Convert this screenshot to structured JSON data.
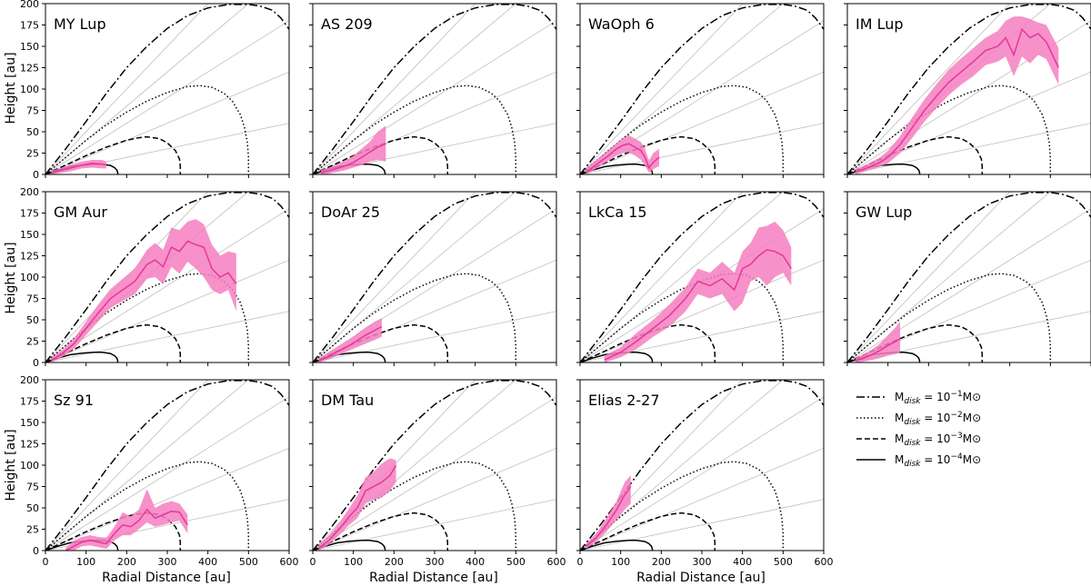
{
  "chart_data": {
    "type": "line",
    "xlabel": "Radial Distance [au]",
    "ylabel": "Height [au]",
    "xlim": [
      0,
      600
    ],
    "ylim": [
      0,
      200
    ],
    "xticks": [
      0,
      100,
      200,
      300,
      400,
      500,
      600
    ],
    "yticks": [
      0,
      25,
      50,
      75,
      100,
      125,
      150,
      175,
      200
    ],
    "grey_ratio_lines": [
      0.1,
      0.2,
      0.3,
      0.4,
      0.5
    ],
    "colors": {
      "data": "#e8359b",
      "band": "#f47fc0",
      "model": "#000000",
      "grid": "#bfbfbf"
    },
    "legend": [
      {
        "label_prefix": "M",
        "label_sub": "disk",
        "label_mid": " = 10",
        "label_sup": "−1",
        "label_suffix": "M⊙",
        "dash": "dashdot"
      },
      {
        "label_prefix": "M",
        "label_sub": "disk",
        "label_mid": " = 10",
        "label_sup": "−2",
        "label_suffix": "M⊙",
        "dash": "dotted"
      },
      {
        "label_prefix": "M",
        "label_sub": "disk",
        "label_mid": " = 10",
        "label_sup": "−3",
        "label_suffix": "M⊙",
        "dash": "dashed"
      },
      {
        "label_prefix": "M",
        "label_sub": "disk",
        "label_mid": " = 10",
        "label_sup": "−4",
        "label_suffix": "M⊙",
        "dash": "solid"
      }
    ],
    "models": [
      {
        "name": "1e-1",
        "dash": "dashdot",
        "x": [
          0,
          50,
          100,
          150,
          200,
          250,
          300,
          350,
          400,
          450,
          500,
          530,
          560,
          580,
          600
        ],
        "y": [
          0,
          30,
          62,
          95,
          125,
          150,
          171,
          186,
          195,
          199,
          199,
          197,
          192,
          183,
          170
        ]
      },
      {
        "name": "1e-2",
        "dash": "dotted",
        "x": [
          0,
          50,
          100,
          150,
          200,
          250,
          300,
          350,
          380,
          410,
          440,
          460,
          480,
          490,
          497,
          500,
          500
        ],
        "y": [
          0,
          20,
          40,
          58,
          73,
          86,
          96,
          103,
          104,
          102,
          95,
          86,
          70,
          55,
          38,
          20,
          0
        ]
      },
      {
        "name": "1e-3",
        "dash": "dashed",
        "x": [
          0,
          50,
          100,
          150,
          200,
          230,
          250,
          280,
          300,
          320,
          330,
          332,
          332
        ],
        "y": [
          0,
          11,
          22,
          32,
          40,
          43,
          44,
          42,
          37,
          28,
          18,
          10,
          0
        ]
      },
      {
        "name": "1e-4",
        "dash": "solid",
        "x": [
          0,
          30,
          60,
          90,
          120,
          140,
          160,
          170,
          176,
          178,
          178
        ],
        "y": [
          0,
          5,
          9,
          11,
          12,
          12,
          10.5,
          8,
          5,
          2,
          0
        ]
      }
    ],
    "panels": [
      {
        "title": "MY Lup",
        "x": [
          15,
          40,
          65,
          90,
          115,
          140,
          150
        ],
        "y": [
          2,
          5,
          8,
          11,
          13,
          12,
          11
        ],
        "lo": [
          0,
          2,
          4,
          7,
          8,
          7,
          7
        ],
        "hi": [
          4,
          8,
          12,
          15,
          17,
          17,
          15
        ]
      },
      {
        "title": "AS 209",
        "x": [
          20,
          40,
          60,
          80,
          100,
          120,
          140,
          160,
          180
        ],
        "y": [
          2,
          4,
          7,
          10,
          14,
          20,
          26,
          32,
          36
        ],
        "lo": [
          0,
          1,
          3,
          5,
          8,
          11,
          15,
          17,
          15
        ],
        "hi": [
          5,
          8,
          12,
          16,
          22,
          30,
          38,
          50,
          57
        ]
      },
      {
        "title": "WaOph 6",
        "x": [
          15,
          30,
          50,
          70,
          90,
          105,
          120,
          135,
          150,
          160,
          170,
          180,
          195
        ],
        "y": [
          3,
          8,
          15,
          22,
          30,
          34,
          36,
          32,
          28,
          20,
          8,
          14,
          20
        ],
        "lo": [
          0,
          4,
          10,
          16,
          22,
          25,
          26,
          22,
          17,
          10,
          2,
          6,
          10
        ],
        "hi": [
          7,
          13,
          21,
          28,
          37,
          42,
          46,
          42,
          38,
          30,
          16,
          25,
          30
        ]
      },
      {
        "title": "IM Lup",
        "x": [
          20,
          40,
          60,
          80,
          100,
          130,
          160,
          190,
          220,
          250,
          280,
          310,
          340,
          370,
          390,
          410,
          430,
          450,
          470,
          490,
          520
        ],
        "y": [
          3,
          6,
          10,
          14,
          20,
          35,
          55,
          75,
          92,
          108,
          120,
          132,
          145,
          150,
          160,
          140,
          170,
          160,
          165,
          155,
          125
        ],
        "lo": [
          0,
          3,
          6,
          9,
          13,
          25,
          43,
          62,
          78,
          93,
          105,
          115,
          128,
          132,
          138,
          115,
          138,
          130,
          140,
          135,
          105
        ],
        "hi": [
          6,
          10,
          15,
          20,
          28,
          45,
          67,
          88,
          106,
          123,
          136,
          148,
          160,
          168,
          180,
          185,
          185,
          182,
          178,
          175,
          148
        ]
      },
      {
        "title": "GM Aur",
        "x": [
          15,
          40,
          70,
          100,
          130,
          160,
          190,
          220,
          250,
          270,
          290,
          310,
          330,
          350,
          370,
          390,
          410,
          430,
          450,
          470
        ],
        "y": [
          3,
          10,
          22,
          40,
          58,
          75,
          85,
          95,
          115,
          120,
          112,
          135,
          130,
          142,
          138,
          135,
          110,
          100,
          105,
          92
        ],
        "lo": [
          0,
          6,
          16,
          32,
          48,
          64,
          72,
          80,
          98,
          100,
          92,
          112,
          104,
          118,
          110,
          100,
          85,
          80,
          85,
          60
        ],
        "hi": [
          6,
          14,
          28,
          48,
          68,
          86,
          98,
          110,
          132,
          140,
          132,
          158,
          155,
          165,
          168,
          162,
          138,
          125,
          130,
          128
        ]
      },
      {
        "title": "DoAr 25",
        "x": [
          15,
          30,
          50,
          70,
          90,
          110,
          130,
          150,
          170
        ],
        "y": [
          2,
          5,
          10,
          15,
          20,
          26,
          32,
          37,
          42
        ],
        "lo": [
          0,
          2,
          6,
          10,
          14,
          18,
          22,
          26,
          30
        ],
        "hi": [
          5,
          9,
          15,
          21,
          27,
          34,
          41,
          47,
          52
        ]
      },
      {
        "title": "LkCa 15",
        "x": [
          60,
          100,
          140,
          180,
          220,
          260,
          290,
          320,
          350,
          380,
          400,
          420,
          440,
          460,
          480,
          500,
          520
        ],
        "y": [
          3,
          12,
          25,
          40,
          55,
          75,
          95,
          90,
          98,
          85,
          110,
          115,
          125,
          132,
          130,
          125,
          110
        ],
        "lo": [
          0,
          6,
          16,
          30,
          42,
          60,
          80,
          75,
          80,
          60,
          70,
          95,
          100,
          90,
          100,
          105,
          90
        ],
        "hi": [
          8,
          18,
          35,
          50,
          68,
          88,
          110,
          105,
          118,
          105,
          130,
          140,
          158,
          160,
          165,
          155,
          135
        ]
      },
      {
        "title": "GW Lup",
        "x": [
          20,
          40,
          60,
          80,
          100,
          120,
          130
        ],
        "y": [
          2,
          5,
          9,
          14,
          20,
          25,
          28
        ],
        "lo": [
          0,
          1,
          3,
          5,
          8,
          10,
          12
        ],
        "hi": [
          5,
          10,
          15,
          22,
          32,
          42,
          48
        ]
      },
      {
        "title": "Sz 91",
        "x": [
          50,
          70,
          90,
          110,
          130,
          150,
          170,
          190,
          210,
          230,
          250,
          270,
          290,
          310,
          330,
          350
        ],
        "y": [
          0,
          5,
          10,
          12,
          10,
          8,
          20,
          30,
          28,
          35,
          48,
          38,
          42,
          46,
          45,
          30
        ],
        "lo": [
          0,
          0,
          5,
          6,
          4,
          2,
          12,
          18,
          18,
          25,
          33,
          28,
          30,
          33,
          35,
          20
        ],
        "hi": [
          3,
          12,
          16,
          18,
          16,
          15,
          28,
          45,
          40,
          48,
          72,
          50,
          55,
          58,
          55,
          42
        ]
      },
      {
        "title": "DM Tau",
        "x": [
          15,
          40,
          65,
          90,
          110,
          130,
          150,
          170,
          190,
          205
        ],
        "y": [
          3,
          12,
          25,
          40,
          50,
          70,
          75,
          80,
          88,
          100
        ],
        "lo": [
          0,
          7,
          18,
          30,
          38,
          55,
          60,
          62,
          70,
          80
        ],
        "hi": [
          7,
          18,
          32,
          50,
          64,
          86,
          92,
          102,
          108,
          106
        ]
      },
      {
        "title": "Elias 2-27",
        "x": [
          15,
          40,
          65,
          90,
          110,
          125
        ],
        "y": [
          5,
          15,
          30,
          48,
          65,
          75
        ],
        "lo": [
          2,
          10,
          22,
          36,
          48,
          55
        ],
        "hi": [
          8,
          20,
          38,
          58,
          80,
          88
        ]
      }
    ]
  }
}
